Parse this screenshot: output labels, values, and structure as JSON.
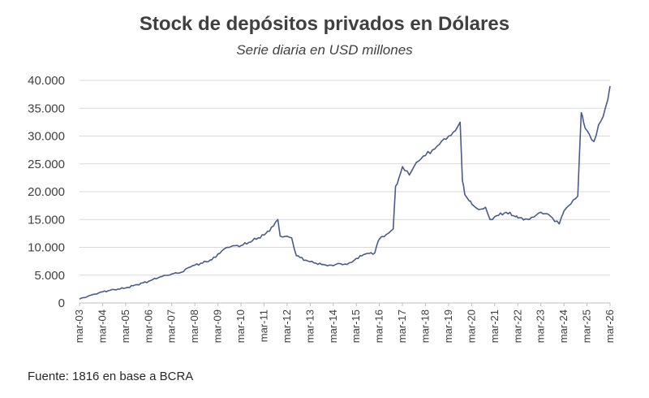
{
  "chart_data": {
    "type": "line",
    "title": "Stock de depósitos privados en Dólares",
    "subtitle": "Serie diaria en USD millones",
    "source": "Fuente: 1816 en base a BCRA",
    "xlabel": "",
    "ylabel": "",
    "ylim": [
      0,
      40000
    ],
    "yticks": [
      0,
      5000,
      10000,
      15000,
      20000,
      25000,
      30000,
      35000,
      40000
    ],
    "ytick_labels": [
      "0",
      "5.000",
      "10.000",
      "15.000",
      "20.000",
      "25.000",
      "30.000",
      "35.000",
      "40.000"
    ],
    "xlim": [
      2003,
      2026
    ],
    "xticks": [
      2003,
      2004,
      2005,
      2006,
      2007,
      2008,
      2009,
      2010,
      2011,
      2012,
      2013,
      2014,
      2015,
      2016,
      2017,
      2018,
      2019,
      2020,
      2021,
      2022,
      2023,
      2024,
      2025,
      2026
    ],
    "xtick_labels": [
      "mar-03",
      "mar-04",
      "mar-05",
      "mar-06",
      "mar-07",
      "mar-08",
      "mar-09",
      "mar-10",
      "mar-11",
      "mar-12",
      "mar-13",
      "mar-14",
      "mar-15",
      "mar-16",
      "mar-17",
      "mar-18",
      "mar-19",
      "mar-20",
      "mar-21",
      "mar-22",
      "mar-23",
      "mar-24",
      "mar-25",
      "mar-26"
    ],
    "grid": true,
    "line_color": "#4a5a8c",
    "series": [
      {
        "name": "Stock de depósitos privados en Dólares",
        "x": [
          2003.0,
          2003.5,
          2004.0,
          2004.5,
          2005.0,
          2005.5,
          2006.0,
          2006.5,
          2007.0,
          2007.5,
          2007.7,
          2008.0,
          2008.5,
          2008.9,
          2009.0,
          2009.4,
          2009.6,
          2010.0,
          2010.5,
          2011.0,
          2011.4,
          2011.6,
          2011.7,
          2012.0,
          2012.2,
          2012.4,
          2012.8,
          2013.0,
          2013.5,
          2014.0,
          2014.2,
          2014.5,
          2014.8,
          2015.0,
          2015.4,
          2015.8,
          2015.9,
          2016.0,
          2016.3,
          2016.6,
          2016.7,
          2016.85,
          2017.0,
          2017.3,
          2017.5,
          2017.7,
          2018.0,
          2018.3,
          2018.6,
          2018.8,
          2019.0,
          2019.3,
          2019.5,
          2019.6,
          2019.7,
          2019.9,
          2020.0,
          2020.3,
          2020.6,
          2020.8,
          2021.0,
          2021.5,
          2021.9,
          2022.0,
          2022.5,
          2022.8,
          2023.0,
          2023.3,
          2023.5,
          2023.8,
          2023.9,
          2024.0,
          2024.3,
          2024.6,
          2024.75,
          2024.85,
          2025.0,
          2025.3,
          2025.5,
          2025.7,
          2025.9,
          2026.0
        ],
        "values": [
          700,
          1400,
          2000,
          2400,
          2700,
          3300,
          3900,
          4700,
          5200,
          5600,
          6300,
          6800,
          7400,
          8200,
          8800,
          10000,
          10200,
          10300,
          11200,
          12200,
          13800,
          15000,
          12000,
          12000,
          11700,
          8500,
          7700,
          7400,
          6900,
          6700,
          7100,
          7000,
          7300,
          8000,
          8800,
          9000,
          10500,
          11500,
          12300,
          13300,
          21000,
          22500,
          24500,
          23000,
          24500,
          25500,
          26500,
          27500,
          28500,
          29500,
          30000,
          31000,
          32500,
          22000,
          19500,
          18300,
          17800,
          16800,
          17200,
          15000,
          15500,
          16300,
          15500,
          15300,
          15000,
          15800,
          16300,
          16000,
          15300,
          14200,
          15500,
          16500,
          17800,
          19200,
          34200,
          32500,
          31000,
          29000,
          32000,
          33500,
          36500,
          39000
        ]
      }
    ]
  }
}
